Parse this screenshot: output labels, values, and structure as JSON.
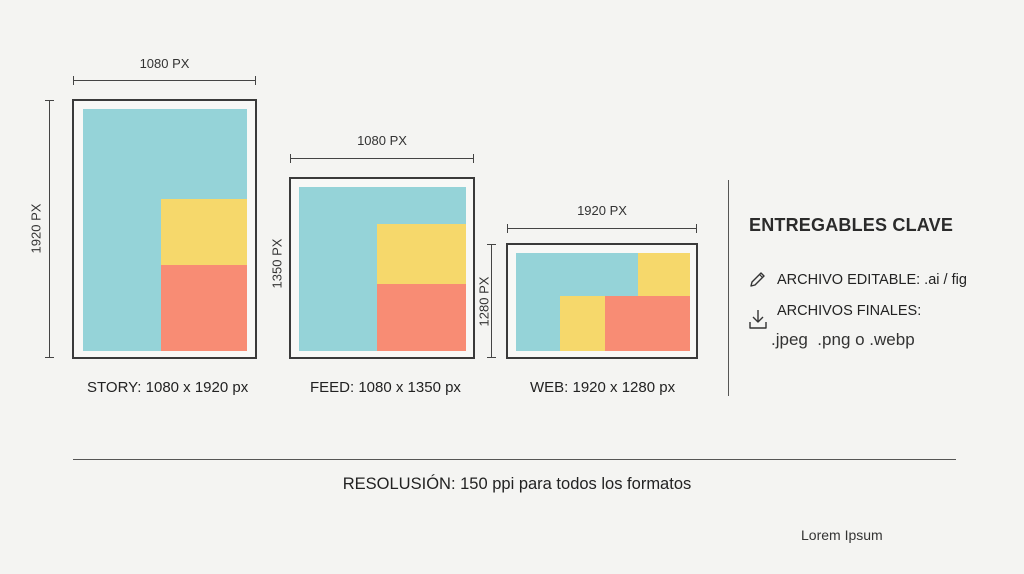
{
  "colors": {
    "cyan": "#95d3d8",
    "yellow": "#f6d86b",
    "coral": "#f88c74",
    "line": "#3a3a3a"
  },
  "formats": [
    {
      "key": "story",
      "width_label": "1080 PX",
      "height_label": "1920 PX",
      "caption": "STORY: 1080 x 1920 px"
    },
    {
      "key": "feed",
      "width_label": "1080 PX",
      "height_label": "1350 PX",
      "caption": "FEED: 1080 x 1350 px"
    },
    {
      "key": "web",
      "width_label": "1920 PX",
      "height_label": "1280 PX",
      "caption": "WEB: 1920 x 1280 px"
    }
  ],
  "deliverables": {
    "title": "ENTREGABLES CLAVE",
    "editable": {
      "icon": "pencil-icon",
      "text": "ARCHIVO EDITABLE: .ai / fig"
    },
    "finals": {
      "icon": "download-icon",
      "text": "ARCHIVOS FINALES:",
      "formats": ".jpeg  .png o .webp"
    }
  },
  "footer": {
    "resolution": "RESOLUSIÓN: 150 ppi para todos los formatos",
    "brand": "Lorem Ipsum"
  }
}
